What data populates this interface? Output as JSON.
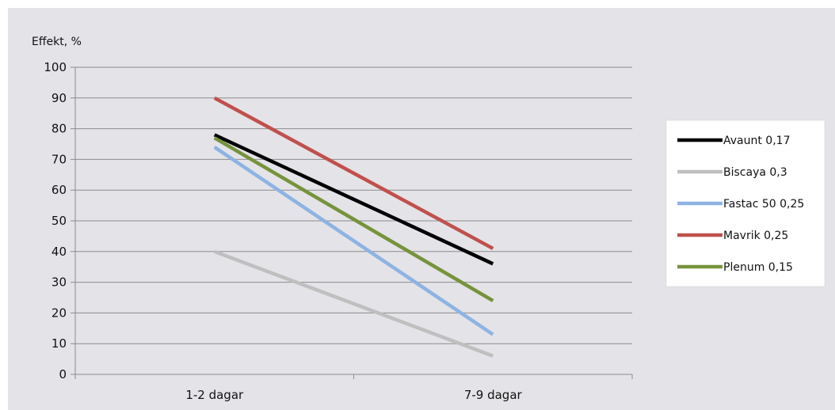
{
  "chart_data": {
    "type": "line",
    "ylabel": "Effekt, %",
    "categories": [
      "1-2 dagar",
      "7-9 dagar"
    ],
    "ylim": [
      0,
      100
    ],
    "yticks": [
      0,
      10,
      20,
      30,
      40,
      50,
      60,
      70,
      80,
      90,
      100
    ],
    "grid": true,
    "legend": "right",
    "series": [
      {
        "name": "Avaunt 0,17",
        "color": "#000000",
        "values": [
          78,
          36
        ]
      },
      {
        "name": "Biscaya 0,3",
        "color": "#bfbfbf",
        "values": [
          40,
          6
        ]
      },
      {
        "name": "Fastac 50 0,25",
        "color": "#8db3e2",
        "values": [
          74,
          13
        ]
      },
      {
        "name": "Mavrik 0,25",
        "color": "#c0504d",
        "values": [
          90,
          41
        ]
      },
      {
        "name": "Plenum 0,15",
        "color": "#76933c",
        "values": [
          77,
          24
        ]
      }
    ]
  }
}
